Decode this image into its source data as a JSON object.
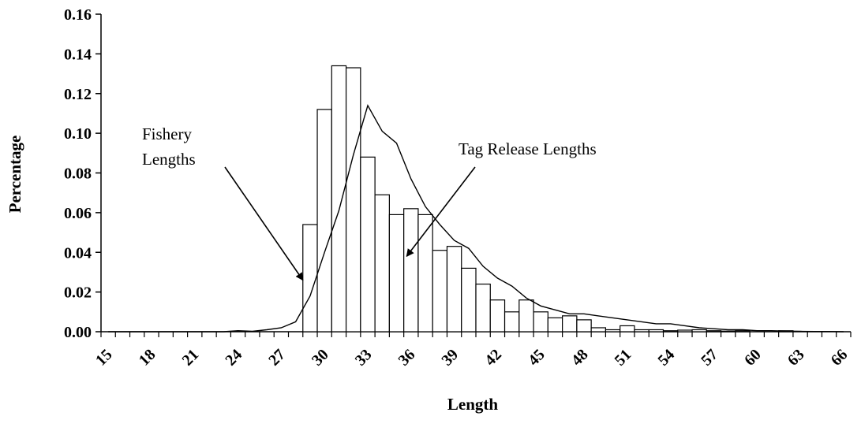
{
  "chart_data": {
    "type": "bar",
    "xlabel": "Length",
    "ylabel": "Percentage",
    "ylim": [
      0,
      0.16
    ],
    "yticks": [
      "0.00",
      "0.02",
      "0.04",
      "0.06",
      "0.08",
      "0.10",
      "0.12",
      "0.14",
      "0.16"
    ],
    "xtick_labels": [
      "15",
      "18",
      "21",
      "24",
      "27",
      "30",
      "33",
      "36",
      "39",
      "42",
      "45",
      "48",
      "51",
      "54",
      "57",
      "60",
      "63",
      "66"
    ],
    "x": [
      15,
      16,
      17,
      18,
      19,
      20,
      21,
      22,
      23,
      24,
      25,
      26,
      27,
      28,
      29,
      30,
      31,
      32,
      33,
      34,
      35,
      36,
      37,
      38,
      39,
      40,
      41,
      42,
      43,
      44,
      45,
      46,
      47,
      48,
      49,
      50,
      51,
      52,
      53,
      54,
      55,
      56,
      57,
      58,
      59,
      60,
      61,
      62,
      63,
      64,
      65,
      66
    ],
    "series": [
      {
        "name": "Tag Release Lengths",
        "kind": "bar",
        "values": [
          0,
          0,
          0,
          0,
          0,
          0,
          0,
          0,
          0,
          0,
          0,
          0,
          0,
          0,
          0.054,
          0.112,
          0.134,
          0.133,
          0.088,
          0.069,
          0.059,
          0.062,
          0.059,
          0.041,
          0.043,
          0.032,
          0.024,
          0.016,
          0.01,
          0.016,
          0.01,
          0.007,
          0.008,
          0.006,
          0.002,
          0.001,
          0.003,
          0.001,
          0.001,
          0.0005,
          0.0008,
          0.001,
          0.0005,
          0.0003,
          0.0005,
          0,
          0,
          0.0005,
          0,
          0,
          0,
          0
        ]
      },
      {
        "name": "Fishery Lengths",
        "kind": "line",
        "values": [
          0,
          0,
          0,
          0,
          0,
          0,
          0,
          0,
          0,
          0.0005,
          0.0002,
          0.001,
          0.002,
          0.005,
          0.018,
          0.04,
          0.061,
          0.089,
          0.114,
          0.101,
          0.095,
          0.077,
          0.063,
          0.054,
          0.046,
          0.042,
          0.033,
          0.027,
          0.023,
          0.017,
          0.013,
          0.011,
          0.009,
          0.009,
          0.008,
          0.007,
          0.006,
          0.005,
          0.004,
          0.004,
          0.003,
          0.002,
          0.0015,
          0.001,
          0.001,
          0.0005,
          0.0005,
          0.0003,
          0.0002,
          0.0001,
          0.0001,
          0
        ]
      }
    ],
    "annotations": [
      {
        "lines": [
          "Fishery",
          "Lengths"
        ],
        "points_to_x": 28.5,
        "points_to_y": 0.026
      },
      {
        "lines": [
          "Tag Release Lengths"
        ],
        "points_to_x": 35.7,
        "points_to_y": 0.038
      }
    ],
    "grid": false,
    "legend": "none"
  }
}
